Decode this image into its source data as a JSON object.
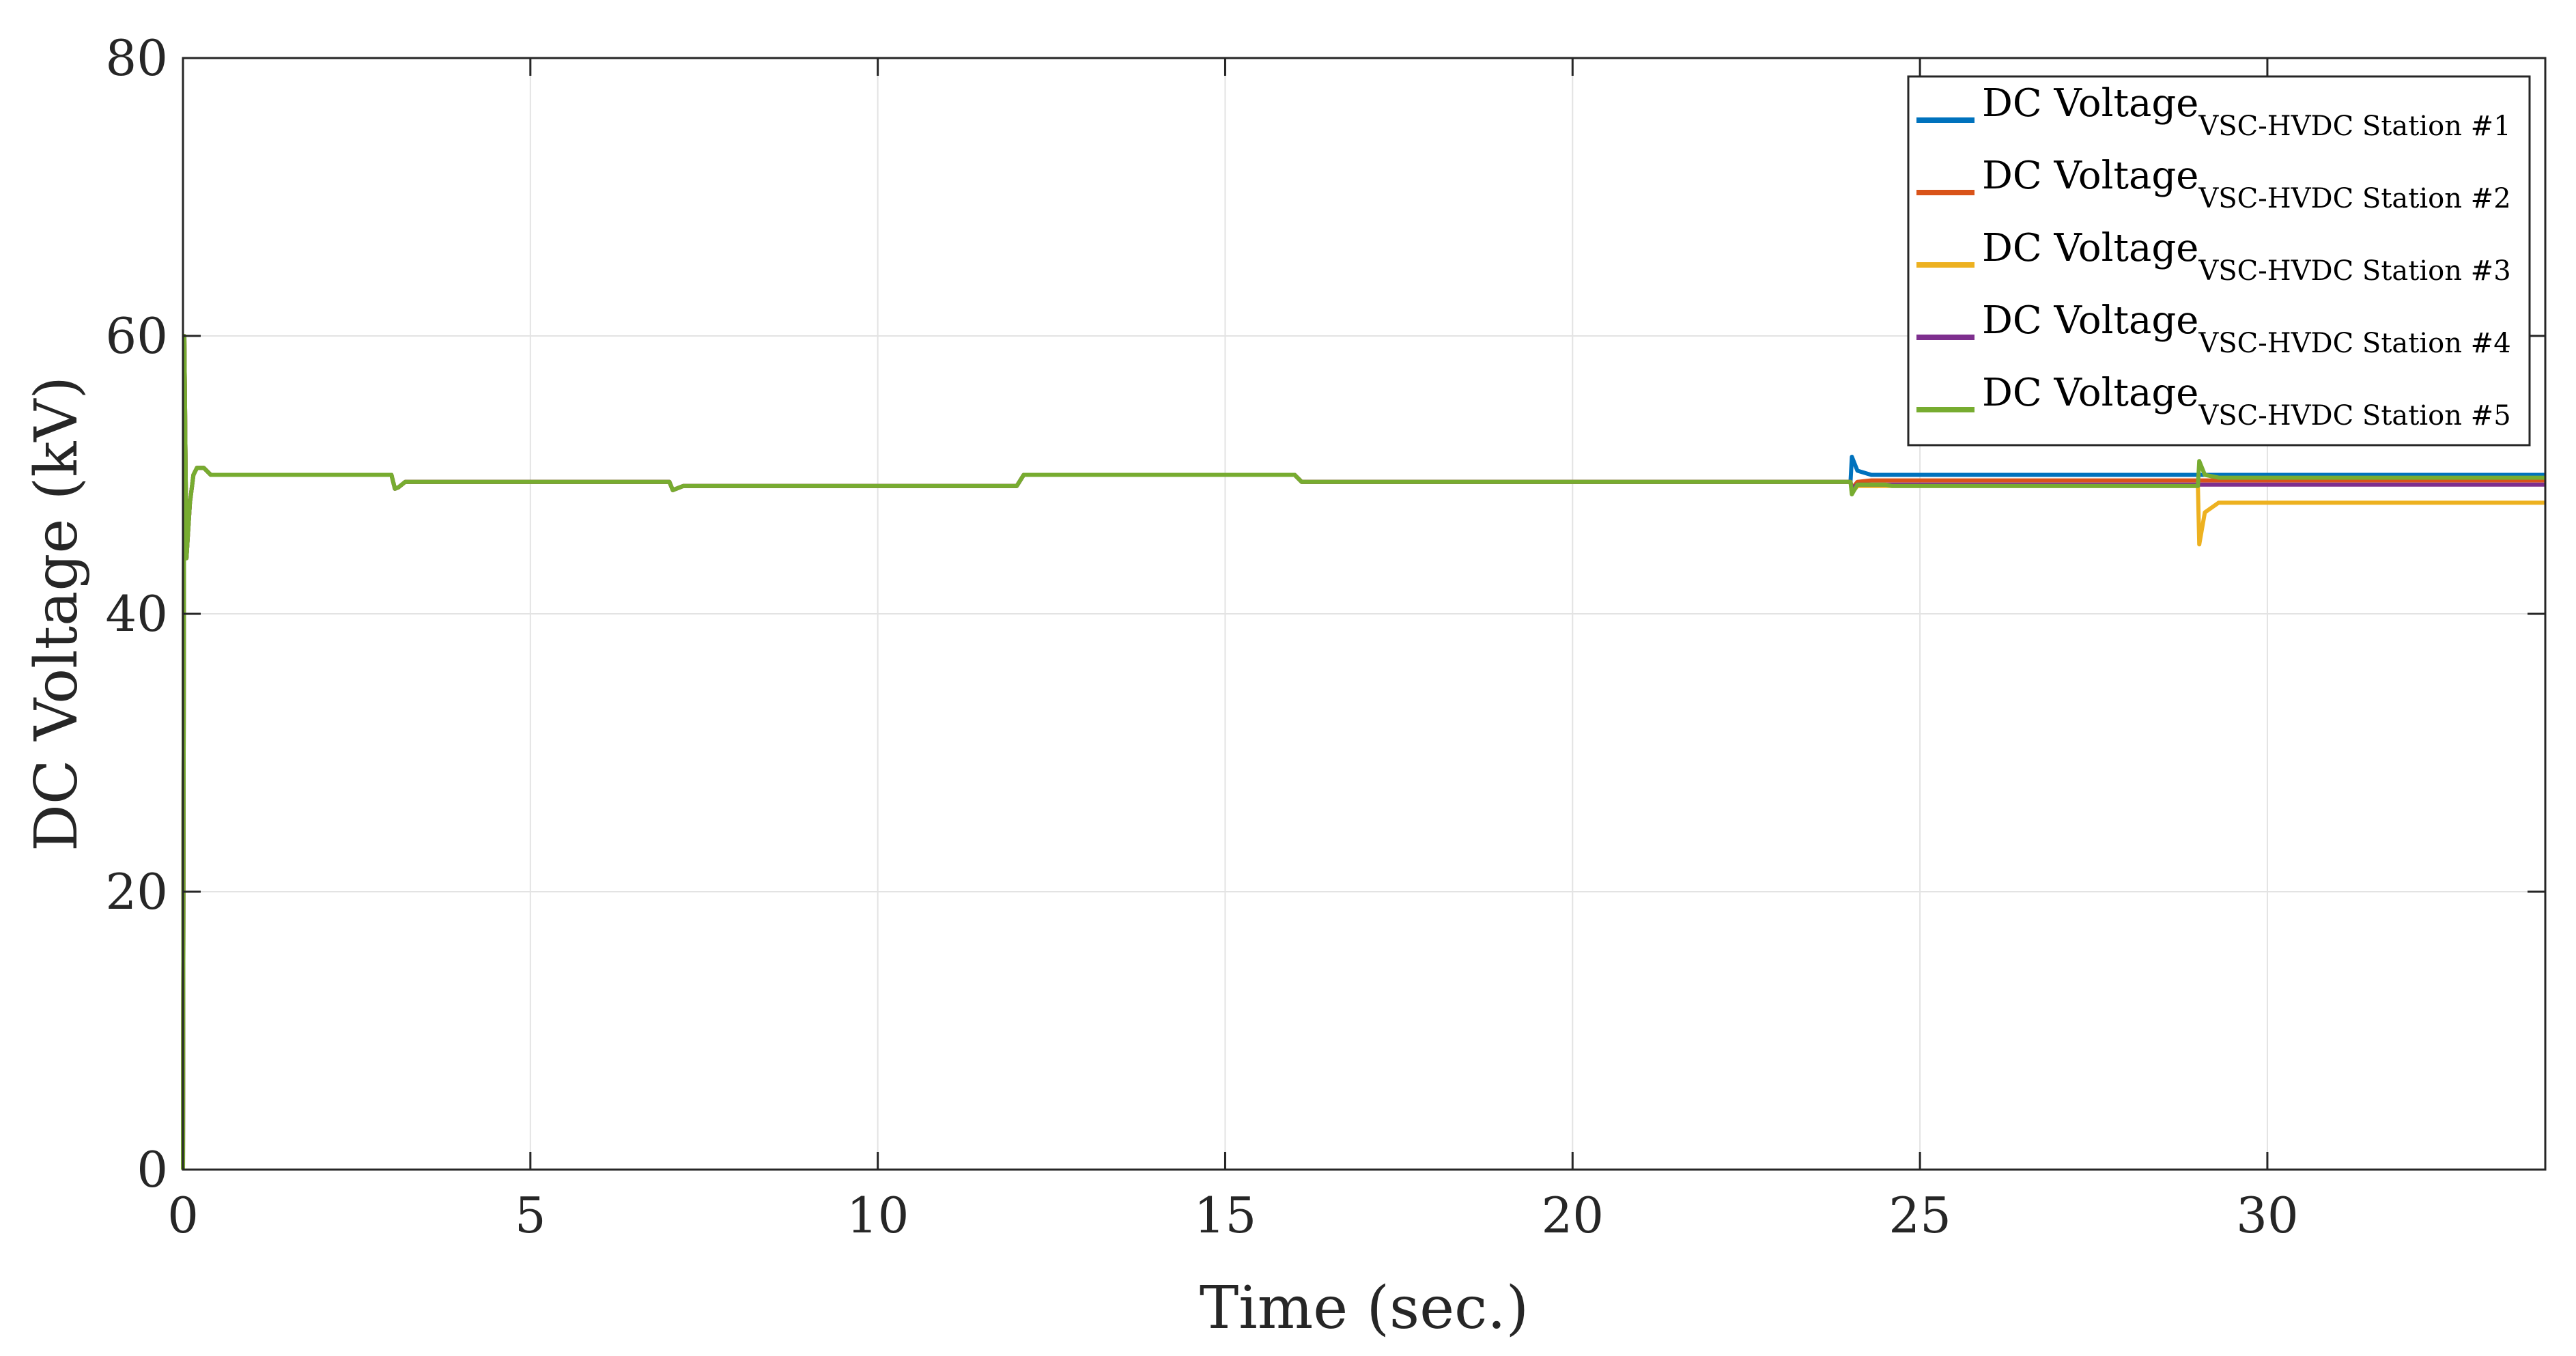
{
  "chart_data": {
    "type": "line",
    "title": "",
    "xlabel": "Time (sec.)",
    "ylabel": "DC Voltage (kV)",
    "xlim": [
      0,
      34
    ],
    "ylim": [
      0,
      80
    ],
    "xticks": [
      0,
      5,
      10,
      15,
      20,
      25,
      30
    ],
    "yticks": [
      0,
      20,
      40,
      60,
      80
    ],
    "grid": true,
    "legend_position": "top-right",
    "series": [
      {
        "name": "DC Voltage",
        "name_subscript": "VSC-HVDC Station #1",
        "color": "#0072BD",
        "x": [
          0,
          0.02,
          0.05,
          0.1,
          0.15,
          0.2,
          0.3,
          0.4,
          3.0,
          3.05,
          3.1,
          3.2,
          7.0,
          7.05,
          7.1,
          7.2,
          12.0,
          12.1,
          16.0,
          16.1,
          24.0,
          24.02,
          24.1,
          24.3,
          34
        ],
        "y": [
          0,
          60,
          44,
          48,
          50,
          50.5,
          50.5,
          50,
          50,
          49,
          49.1,
          49.5,
          49.5,
          48.9,
          49,
          49.2,
          49.2,
          50,
          50,
          49.5,
          49.5,
          51.3,
          50.3,
          50,
          50
        ]
      },
      {
        "name": "DC Voltage",
        "name_subscript": "VSC-HVDC Station #2",
        "color": "#D95319",
        "x": [
          0,
          0.02,
          0.05,
          0.1,
          0.15,
          0.2,
          0.3,
          0.4,
          3.0,
          3.05,
          3.1,
          3.2,
          7.0,
          7.05,
          7.1,
          7.2,
          12.0,
          12.1,
          16.0,
          16.1,
          24.0,
          24.02,
          24.1,
          24.3,
          34
        ],
        "y": [
          0,
          60,
          44,
          48,
          50,
          50.5,
          50.5,
          50,
          50,
          49,
          49.1,
          49.5,
          49.5,
          48.9,
          49,
          49.2,
          49.2,
          50,
          50,
          49.5,
          49.5,
          49,
          49.5,
          49.6,
          49.6
        ]
      },
      {
        "name": "DC Voltage",
        "name_subscript": "VSC-HVDC Station #3",
        "color": "#EDB120",
        "x": [
          0,
          0.02,
          0.05,
          0.1,
          0.15,
          0.2,
          0.3,
          0.4,
          3.0,
          3.05,
          3.1,
          3.2,
          7.0,
          7.05,
          7.1,
          7.2,
          12.0,
          12.1,
          16.0,
          16.1,
          24.0,
          24.02,
          24.1,
          24.3,
          29.0,
          29.02,
          29.1,
          29.3,
          34
        ],
        "y": [
          0,
          60,
          44,
          48,
          50,
          50.5,
          50.5,
          50,
          50,
          49,
          49.1,
          49.5,
          49.5,
          48.9,
          49,
          49.2,
          49.2,
          50,
          50,
          49.5,
          49.5,
          48.7,
          49.2,
          49.2,
          49.2,
          45,
          47.3,
          48,
          48
        ]
      },
      {
        "name": "DC Voltage",
        "name_subscript": "VSC-HVDC Station #4",
        "color": "#7E2F8E",
        "x": [
          0,
          0.02,
          0.05,
          0.1,
          0.15,
          0.2,
          0.3,
          0.4,
          3.0,
          3.05,
          3.1,
          3.2,
          7.0,
          7.05,
          7.1,
          7.2,
          12.0,
          12.1,
          16.0,
          16.1,
          24.0,
          24.02,
          24.1,
          24.3,
          34
        ],
        "y": [
          0,
          60,
          44,
          48,
          50,
          50.5,
          50.5,
          50,
          50,
          49,
          49.1,
          49.5,
          49.5,
          48.9,
          49,
          49.2,
          49.2,
          50,
          50,
          49.5,
          49.5,
          49,
          49.3,
          49.3,
          49.3
        ]
      },
      {
        "name": "DC Voltage",
        "name_subscript": "VSC-HVDC Station #5",
        "color": "#77AC30",
        "x": [
          0,
          0.02,
          0.05,
          0.1,
          0.15,
          0.2,
          0.3,
          0.4,
          3.0,
          3.05,
          3.1,
          3.2,
          7.0,
          7.05,
          7.1,
          7.2,
          12.0,
          12.1,
          16.0,
          16.1,
          24.0,
          24.02,
          24.1,
          24.5,
          24.6,
          29.0,
          29.02,
          29.1,
          29.3,
          34
        ],
        "y": [
          0,
          60,
          44,
          48,
          50,
          50.5,
          50.5,
          50,
          50,
          49,
          49.1,
          49.5,
          49.5,
          48.9,
          49,
          49.2,
          49.2,
          50,
          50,
          49.5,
          49.5,
          48.6,
          49.3,
          49.3,
          49.2,
          49.2,
          51,
          50,
          49.8,
          49.8
        ]
      }
    ]
  }
}
